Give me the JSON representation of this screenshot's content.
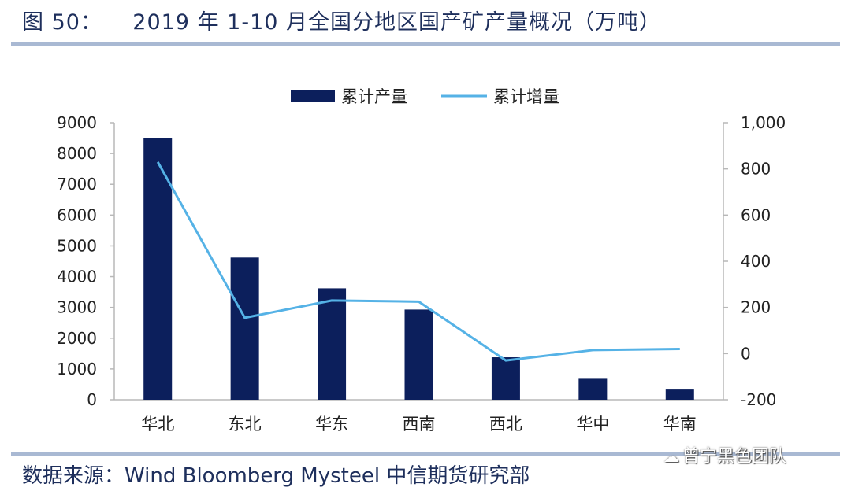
{
  "header": {
    "title": "图 50：    2019 年 1-10 月全国分地区国产矿产量概况（万吨）"
  },
  "footer": {
    "source": "数据来源：Wind Bloomberg Mysteel 中信期货研究部",
    "watermark": "曾宁黑色团队",
    "watermark_icon": "wechat-icon"
  },
  "chart_data": {
    "type": "bar+line",
    "categories": [
      "华北",
      "东北",
      "华东",
      "西南",
      "西北",
      "华中",
      "华南"
    ],
    "series": [
      {
        "name": "累计产量",
        "type": "bar",
        "axis": "left",
        "values": [
          8500,
          4620,
          3620,
          2930,
          1380,
          680,
          330
        ],
        "color": "#0c1f5c"
      },
      {
        "name": "累计增量",
        "type": "line",
        "axis": "right",
        "values": [
          830,
          155,
          230,
          225,
          -30,
          15,
          20
        ],
        "color": "#55b2e6"
      }
    ],
    "y_left": {
      "min": 0,
      "max": 9000,
      "ticks": [
        "0",
        "1000",
        "2000",
        "3000",
        "4000",
        "5000",
        "6000",
        "7000",
        "8000",
        "9000"
      ]
    },
    "y_right": {
      "min": -200,
      "max": 1000,
      "ticks": [
        "-200",
        "0",
        "200",
        "400",
        "600",
        "800",
        "1,000"
      ]
    },
    "legend": "top-center",
    "grid": false
  }
}
